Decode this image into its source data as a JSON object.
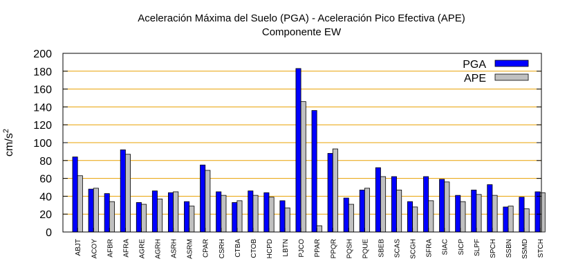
{
  "chart_data": {
    "type": "bar",
    "title_line1": "Aceleración Máxima del Suelo (PGA) -  Aceleración Pico Efectiva (APE)",
    "title_line2": "Componente EW",
    "ylabel": "cm/s",
    "ylabel_sup": "2",
    "xlabel": "",
    "ylim": [
      0,
      200
    ],
    "yticks": [
      0,
      20,
      40,
      60,
      80,
      100,
      120,
      140,
      160,
      180,
      200
    ],
    "grid": "horizontal dashed orange",
    "legend_position": "top-right",
    "categories": [
      "ABJT",
      "ACOY",
      "AFBR",
      "AFRA",
      "AGRE",
      "AGRH",
      "ASRH",
      "ASRM",
      "CPAR",
      "CSRH",
      "CTBA",
      "CTOB",
      "HCPD",
      "LBTN",
      "PJCO",
      "PPAR",
      "PPQR",
      "PQSH",
      "PQUE",
      "SBEB",
      "SCAS",
      "SCGH",
      "SFRA",
      "SIAC",
      "SICP",
      "SLPF",
      "SPCH",
      "SSBN",
      "SSMD",
      "STCH"
    ],
    "series": [
      {
        "name": "PGA",
        "color": "#0000ff",
        "values": [
          84,
          48,
          43,
          92,
          33,
          46,
          44,
          34,
          75,
          45,
          33,
          46,
          44,
          35,
          183,
          136,
          88,
          38,
          47,
          72,
          62,
          34,
          62,
          59,
          41,
          47,
          53,
          28,
          39,
          45
        ]
      },
      {
        "name": "APE",
        "color": "#c0c0c0",
        "values": [
          63,
          49,
          34,
          87,
          31,
          37,
          45,
          29,
          69,
          41,
          35,
          41,
          39,
          27,
          146,
          7,
          93,
          31,
          49,
          62,
          47,
          28,
          35,
          56,
          34,
          42,
          41,
          29,
          26,
          44
        ]
      }
    ]
  }
}
